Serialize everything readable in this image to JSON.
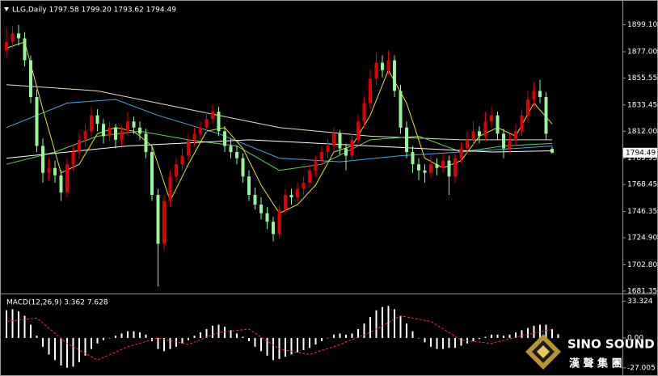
{
  "chart_data": [
    {
      "type": "candlestick",
      "title": "LLG,Daily 1797.58 1799.20 1793.62 1794.49",
      "up_color": "#e00000",
      "down_color": "#98f598",
      "ylim": [
        1680,
        1916
      ],
      "yticks": [
        {
          "value": 1899.1,
          "label": "1899.10"
        },
        {
          "value": 1877,
          "label": "1877.00"
        },
        1855.55,
        1833.45,
        {
          "value": 1812,
          "label": "1812.00"
        },
        1789.95,
        1768.45,
        1746.35,
        {
          "value": 1724.9,
          "label": "1724.90"
        },
        {
          "value": 1702.8,
          "label": "1702.80"
        },
        1681.35
      ],
      "ohlc": [
        [
          1878,
          1896,
          1872,
          1885
        ],
        [
          1885,
          1898,
          1880,
          1892
        ],
        [
          1892,
          1899,
          1882,
          1888
        ],
        [
          1888,
          1893,
          1865,
          1870
        ],
        [
          1870,
          1874,
          1835,
          1840
        ],
        [
          1840,
          1846,
          1795,
          1800
        ],
        [
          1800,
          1806,
          1770,
          1778
        ],
        [
          1778,
          1790,
          1772,
          1782
        ],
        [
          1782,
          1788,
          1770,
          1776
        ],
        [
          1776,
          1780,
          1755,
          1762
        ],
        [
          1762,
          1790,
          1758,
          1785
        ],
        [
          1785,
          1800,
          1780,
          1795
        ],
        [
          1795,
          1810,
          1790,
          1805
        ],
        [
          1805,
          1818,
          1800,
          1812
        ],
        [
          1812,
          1832,
          1808,
          1825
        ],
        [
          1825,
          1830,
          1812,
          1818
        ],
        [
          1818,
          1822,
          1802,
          1808
        ],
        [
          1808,
          1820,
          1804,
          1815
        ],
        [
          1815,
          1818,
          1798,
          1805
        ],
        [
          1805,
          1816,
          1800,
          1812
        ],
        [
          1812,
          1828,
          1808,
          1820
        ],
        [
          1820,
          1824,
          1810,
          1815
        ],
        [
          1815,
          1820,
          1805,
          1810
        ],
        [
          1810,
          1814,
          1790,
          1795
        ],
        [
          1795,
          1800,
          1755,
          1760
        ],
        [
          1760,
          1765,
          1685,
          1720
        ],
        [
          1720,
          1760,
          1715,
          1755
        ],
        [
          1755,
          1780,
          1750,
          1775
        ],
        [
          1775,
          1790,
          1770,
          1785
        ],
        [
          1785,
          1798,
          1780,
          1792
        ],
        [
          1792,
          1810,
          1788,
          1805
        ],
        [
          1805,
          1815,
          1800,
          1810
        ],
        [
          1810,
          1820,
          1805,
          1815
        ],
        [
          1815,
          1828,
          1810,
          1822
        ],
        [
          1822,
          1834,
          1818,
          1828
        ],
        [
          1828,
          1832,
          1808,
          1812
        ],
        [
          1812,
          1816,
          1795,
          1800
        ],
        [
          1800,
          1806,
          1790,
          1795
        ],
        [
          1795,
          1800,
          1785,
          1790
        ],
        [
          1790,
          1794,
          1770,
          1775
        ],
        [
          1775,
          1780,
          1755,
          1760
        ],
        [
          1760,
          1766,
          1748,
          1752
        ],
        [
          1752,
          1758,
          1740,
          1745
        ],
        [
          1745,
          1750,
          1732,
          1738
        ],
        [
          1738,
          1742,
          1722,
          1728
        ],
        [
          1728,
          1752,
          1725,
          1748
        ],
        [
          1748,
          1765,
          1744,
          1760
        ],
        [
          1760,
          1765,
          1752,
          1758
        ],
        [
          1758,
          1770,
          1754,
          1765
        ],
        [
          1765,
          1775,
          1760,
          1770
        ],
        [
          1770,
          1785,
          1766,
          1780
        ],
        [
          1780,
          1792,
          1775,
          1788
        ],
        [
          1788,
          1800,
          1784,
          1795
        ],
        [
          1795,
          1806,
          1790,
          1800
        ],
        [
          1800,
          1815,
          1796,
          1810
        ],
        [
          1810,
          1813,
          1793,
          1798
        ],
        [
          1798,
          1802,
          1780,
          1792
        ],
        [
          1792,
          1810,
          1788,
          1805
        ],
        [
          1805,
          1826,
          1800,
          1820
        ],
        [
          1820,
          1840,
          1815,
          1835
        ],
        [
          1835,
          1862,
          1830,
          1855
        ],
        [
          1855,
          1876,
          1850,
          1868
        ],
        [
          1868,
          1874,
          1856,
          1862
        ],
        [
          1862,
          1878,
          1858,
          1870
        ],
        [
          1870,
          1874,
          1840,
          1845
        ],
        [
          1845,
          1850,
          1810,
          1815
        ],
        [
          1815,
          1820,
          1790,
          1795
        ],
        [
          1795,
          1800,
          1778,
          1785
        ],
        [
          1785,
          1790,
          1772,
          1780
        ],
        [
          1780,
          1785,
          1770,
          1778
        ],
        [
          1778,
          1792,
          1774,
          1785
        ],
        [
          1785,
          1790,
          1776,
          1782
        ],
        [
          1782,
          1795,
          1778,
          1788
        ],
        [
          1788,
          1792,
          1760,
          1775
        ],
        [
          1775,
          1795,
          1770,
          1790
        ],
        [
          1790,
          1803,
          1786,
          1798
        ],
        [
          1798,
          1812,
          1794,
          1805
        ],
        [
          1805,
          1820,
          1800,
          1812
        ],
        [
          1812,
          1816,
          1802,
          1808
        ],
        [
          1808,
          1828,
          1804,
          1820
        ],
        [
          1820,
          1832,
          1815,
          1825
        ],
        [
          1825,
          1828,
          1805,
          1810
        ],
        [
          1810,
          1814,
          1790,
          1798
        ],
        [
          1798,
          1810,
          1794,
          1805
        ],
        [
          1805,
          1818,
          1800,
          1812
        ],
        [
          1812,
          1830,
          1808,
          1825
        ],
        [
          1825,
          1845,
          1820,
          1838
        ],
        [
          1838,
          1852,
          1832,
          1845
        ],
        [
          1845,
          1854,
          1835,
          1840
        ],
        [
          1840,
          1844,
          1805,
          1810
        ],
        [
          1797.58,
          1799.2,
          1793.62,
          1794.49
        ]
      ],
      "lines": [
        {
          "color": "#e8e0c0",
          "x": [
            0,
            15,
            30,
            45,
            60,
            75,
            90
          ],
          "values": [
            1850,
            1845,
            1830,
            1815,
            1808,
            1805,
            1805
          ]
        },
        {
          "color": "#4aa8e8",
          "x": [
            0,
            10,
            18,
            25,
            35,
            45,
            55,
            65,
            75,
            90
          ],
          "values": [
            1815,
            1835,
            1838,
            1825,
            1810,
            1790,
            1787,
            1792,
            1795,
            1800
          ]
        },
        {
          "color": "#60d060",
          "x": [
            0,
            8,
            15,
            22,
            30,
            38,
            45,
            52,
            60,
            68,
            75,
            82,
            90
          ],
          "values": [
            1785,
            1795,
            1808,
            1812,
            1805,
            1800,
            1780,
            1785,
            1805,
            1808,
            1795,
            1800,
            1802
          ]
        },
        {
          "color": "#ffffff",
          "x": [
            0,
            20,
            40,
            60,
            80,
            90
          ],
          "values": [
            1790,
            1800,
            1805,
            1800,
            1795,
            1796
          ]
        },
        {
          "color": "#e8e030",
          "x": [
            0,
            3,
            6,
            9,
            12,
            15,
            18,
            21,
            24,
            27,
            30,
            33,
            36,
            39,
            42,
            45,
            48,
            51,
            54,
            57,
            60,
            63,
            66,
            69,
            72,
            75,
            78,
            81,
            84,
            87,
            90
          ],
          "values": [
            1880,
            1885,
            1830,
            1778,
            1785,
            1810,
            1815,
            1812,
            1800,
            1755,
            1785,
            1812,
            1815,
            1798,
            1768,
            1745,
            1752,
            1768,
            1795,
            1800,
            1825,
            1862,
            1835,
            1790,
            1782,
            1788,
            1808,
            1815,
            1808,
            1835,
            1818
          ]
        }
      ]
    },
    {
      "type": "macd",
      "title": "MACD(12,26,9) 3.362 7.628",
      "color": "#ffffff",
      "ylim": [
        -33,
        38
      ],
      "yticks": [
        33.324,
        {
          "value": 0,
          "label": "0.00"
        },
        -27.005
      ],
      "values": [
        25,
        26,
        24,
        20,
        12,
        2,
        -8,
        -15,
        -20,
        -25,
        -27,
        -26,
        -22,
        -16,
        -10,
        -5,
        -2,
        0,
        2,
        4,
        6,
        6,
        5,
        3,
        -3,
        -10,
        -12,
        -10,
        -8,
        -5,
        -2,
        2,
        5,
        8,
        11,
        12,
        10,
        7,
        4,
        1,
        -3,
        -8,
        -12,
        -16,
        -20,
        -19,
        -17,
        -15,
        -13,
        -11,
        -9,
        -6,
        -3,
        0,
        3,
        4,
        3,
        4,
        8,
        13,
        19,
        25,
        28,
        29,
        26,
        20,
        13,
        6,
        0,
        -4,
        -8,
        -10,
        -10,
        -9,
        -9,
        -7,
        -5,
        -3,
        -1,
        1,
        3,
        3,
        2,
        3,
        5,
        7,
        9,
        11,
        12,
        12,
        8,
        3.362
      ],
      "signal": {
        "color": "#ff3030",
        "x": [
          0,
          5,
          10,
          15,
          20,
          25,
          30,
          35,
          40,
          45,
          50,
          55,
          60,
          65,
          70,
          75,
          80,
          85,
          90
        ],
        "values": [
          15,
          18,
          -5,
          -20,
          -8,
          0,
          -6,
          5,
          8,
          -10,
          -15,
          -6,
          5,
          20,
          15,
          -2,
          -5,
          2,
          7.628
        ]
      }
    }
  ],
  "logo": {
    "name": "SINO SOUND",
    "chinese": "漢 聲 集 團"
  }
}
